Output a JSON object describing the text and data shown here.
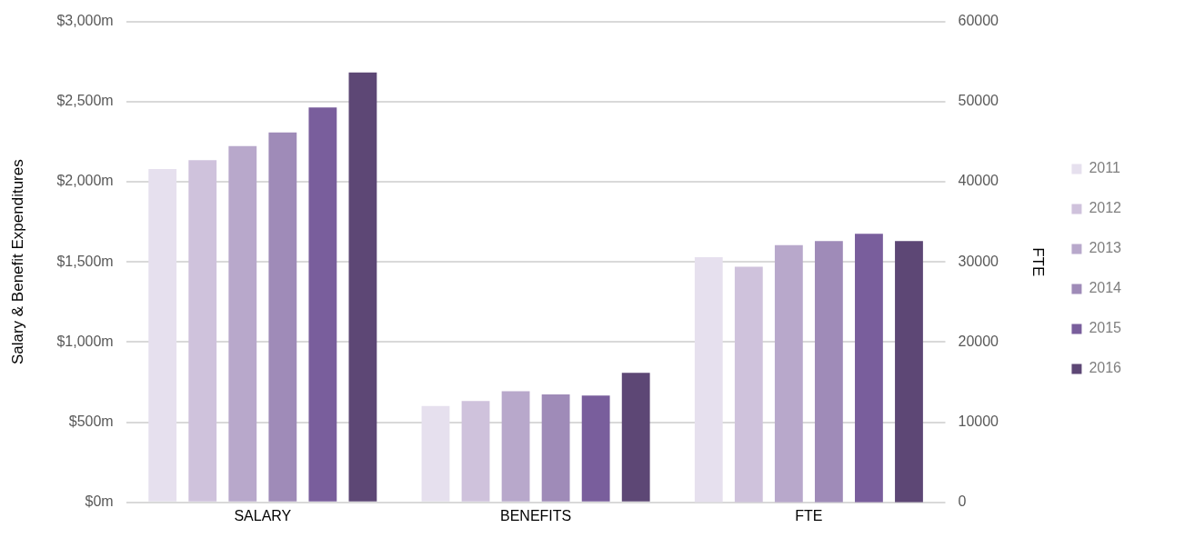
{
  "chart_data": {
    "type": "bar",
    "ylabel": "Salary & Benefit Expenditures",
    "y2label": "FTE",
    "categories": [
      "SALARY",
      "BENEFITS",
      "FTE"
    ],
    "series": [
      {
        "name": "2011",
        "color": "#e6e0ee",
        "values": [
          2080,
          601,
          null
        ]
      },
      {
        "name": "2012",
        "color": "#cfc2dc",
        "values": [
          2135,
          633,
          null
        ]
      },
      {
        "name": "2013",
        "color": "#b8a8cb",
        "values": [
          2222,
          694,
          null
        ]
      },
      {
        "name": "2014",
        "color": "#9f8bb8",
        "values": [
          2308,
          673,
          null
        ]
      },
      {
        "name": "2015",
        "color": "#795e9c",
        "values": [
          2464,
          667,
          null
        ]
      },
      {
        "name": "2016",
        "color": "#5d4775",
        "values": [
          2682,
          808,
          null
        ]
      },
      {
        "color": "#e6e0ee",
        "axis": "y2",
        "values": [
          null,
          null,
          30600
        ]
      },
      {
        "color": "#cfc2dc",
        "axis": "y2",
        "values": [
          null,
          null,
          29400
        ]
      },
      {
        "color": "#b8a8cb",
        "axis": "y2",
        "values": [
          null,
          null,
          32100
        ]
      },
      {
        "color": "#9f8bb8",
        "axis": "y2",
        "values": [
          null,
          null,
          32600
        ]
      },
      {
        "color": "#795e9c",
        "axis": "y2",
        "values": [
          null,
          null,
          33500
        ]
      },
      {
        "color": "#5d4775",
        "axis": "y2",
        "values": [
          null,
          null,
          32600
        ]
      }
    ],
    "ylim": [
      0,
      3000
    ],
    "yticks": [
      {
        "value": 0,
        "label": "$0m"
      },
      {
        "value": 500,
        "label": "$500m"
      },
      {
        "value": 1000,
        "label": "$1,000m"
      },
      {
        "value": 1500,
        "label": "$1,500m"
      },
      {
        "value": 2000,
        "label": "$2,000m"
      },
      {
        "value": 2500,
        "label": "$2,500m"
      },
      {
        "value": 3000,
        "label": "$3,000m"
      }
    ],
    "y2lim": [
      0,
      60000
    ],
    "y2ticks": [
      0,
      10000,
      20000,
      30000,
      40000,
      50000,
      60000
    ],
    "grid": "y",
    "legend": "right"
  }
}
